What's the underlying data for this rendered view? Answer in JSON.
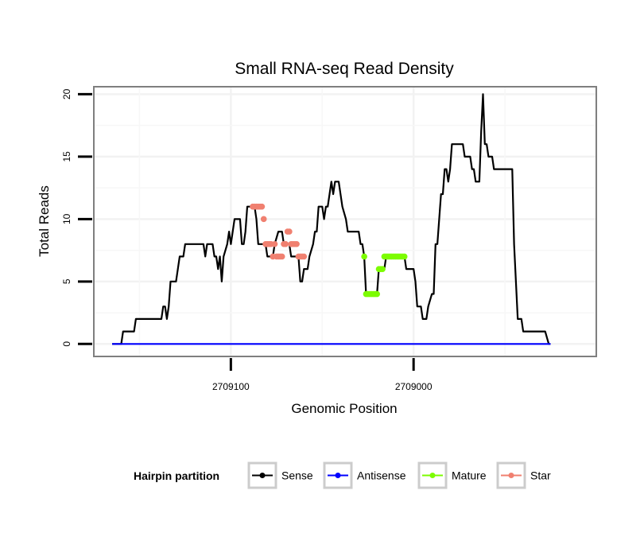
{
  "chart_data": {
    "type": "line",
    "title": "Small RNA-seq Read Density",
    "xlabel": "Genomic Position",
    "ylabel": "Total Reads",
    "x_reversed": true,
    "xlim": [
      2709175,
      2708900
    ],
    "ylim": [
      -1,
      20.6
    ],
    "x_ticks": [
      {
        "value": 2709100,
        "label": "2709100"
      },
      {
        "value": 2709000,
        "label": "2709000"
      }
    ],
    "y_ticks": [
      {
        "value": 0,
        "label": "0"
      },
      {
        "value": 5,
        "label": "5"
      },
      {
        "value": 10,
        "label": "10"
      },
      {
        "value": 15,
        "label": "15"
      },
      {
        "value": 20,
        "label": "20"
      }
    ],
    "grid": true,
    "legend": {
      "title": "Hairpin partition",
      "placement": "bottom",
      "entries": [
        {
          "label": "Sense",
          "color": "#000000"
        },
        {
          "label": "Antisense",
          "color": "#0000ff"
        },
        {
          "label": "Mature",
          "color": "#7cfc00"
        },
        {
          "label": "Star",
          "color": "#f08070"
        }
      ]
    },
    "series": [
      {
        "name": "Sense",
        "color": "#000000",
        "style": "line",
        "points": [
          [
            2709165,
            0
          ],
          [
            2709160,
            0
          ],
          [
            2709159,
            1
          ],
          [
            2709153,
            1
          ],
          [
            2709152,
            2
          ],
          [
            2709138,
            2
          ],
          [
            2709137,
            3
          ],
          [
            2709136,
            3
          ],
          [
            2709135,
            2
          ],
          [
            2709134,
            3
          ],
          [
            2709133,
            5
          ],
          [
            2709130,
            5
          ],
          [
            2709129,
            6
          ],
          [
            2709128,
            7
          ],
          [
            2709126,
            7
          ],
          [
            2709125,
            8
          ],
          [
            2709115,
            8
          ],
          [
            2709114,
            7
          ],
          [
            2709113,
            8
          ],
          [
            2709110,
            8
          ],
          [
            2709109,
            7
          ],
          [
            2709108,
            7
          ],
          [
            2709107,
            6
          ],
          [
            2709106,
            7
          ],
          [
            2709105,
            5
          ],
          [
            2709104,
            7
          ],
          [
            2709102,
            8
          ],
          [
            2709101,
            9
          ],
          [
            2709100,
            8
          ],
          [
            2709098,
            10
          ],
          [
            2709095,
            10
          ],
          [
            2709094,
            8
          ],
          [
            2709093,
            8
          ],
          [
            2709092,
            9
          ],
          [
            2709091,
            11
          ],
          [
            2709087,
            11
          ],
          [
            2709086,
            10
          ],
          [
            2709085,
            8
          ],
          [
            2709081,
            8
          ],
          [
            2709080,
            7
          ],
          [
            2709077,
            7
          ],
          [
            2709076,
            8
          ],
          [
            2709074,
            9
          ],
          [
            2709072,
            9
          ],
          [
            2709071,
            8
          ],
          [
            2709068,
            8
          ],
          [
            2709067,
            7
          ],
          [
            2709063,
            7
          ],
          [
            2709062,
            5
          ],
          [
            2709061,
            5
          ],
          [
            2709060,
            6
          ],
          [
            2709058,
            6
          ],
          [
            2709057,
            7
          ],
          [
            2709055,
            8
          ],
          [
            2709054,
            9
          ],
          [
            2709053,
            9
          ],
          [
            2709052,
            11
          ],
          [
            2709050,
            11
          ],
          [
            2709049,
            10
          ],
          [
            2709048,
            11
          ],
          [
            2709047,
            11
          ],
          [
            2709046,
            12
          ],
          [
            2709045,
            13
          ],
          [
            2709044,
            12
          ],
          [
            2709043,
            13
          ],
          [
            2709041,
            13
          ],
          [
            2709040,
            12
          ],
          [
            2709039,
            11
          ],
          [
            2709037,
            10
          ],
          [
            2709036,
            9
          ],
          [
            2709030,
            9
          ],
          [
            2709029,
            8
          ],
          [
            2709028,
            8
          ],
          [
            2709027,
            7
          ],
          [
            2709026,
            4
          ],
          [
            2709020,
            4
          ],
          [
            2709019,
            6
          ],
          [
            2709016,
            6
          ],
          [
            2709015,
            7
          ],
          [
            2709005,
            7
          ],
          [
            2709004,
            6
          ],
          [
            2709000,
            6
          ],
          [
            2708999,
            5
          ],
          [
            2708998,
            3
          ],
          [
            2708996,
            3
          ],
          [
            2708995,
            2
          ],
          [
            2708993,
            2
          ],
          [
            2708992,
            3
          ],
          [
            2708990,
            4
          ],
          [
            2708989,
            4
          ],
          [
            2708988,
            8
          ],
          [
            2708987,
            8
          ],
          [
            2708986,
            10
          ],
          [
            2708985,
            12
          ],
          [
            2708984,
            12
          ],
          [
            2708983,
            14
          ],
          [
            2708982,
            14
          ],
          [
            2708981,
            13
          ],
          [
            2708980,
            14
          ],
          [
            2708979,
            16
          ],
          [
            2708973,
            16
          ],
          [
            2708972,
            15
          ],
          [
            2708969,
            15
          ],
          [
            2708968,
            14
          ],
          [
            2708967,
            14
          ],
          [
            2708966,
            13
          ],
          [
            2708964,
            13
          ],
          [
            2708963,
            17
          ],
          [
            2708962,
            20
          ],
          [
            2708961,
            16
          ],
          [
            2708960,
            16
          ],
          [
            2708959,
            15
          ],
          [
            2708957,
            15
          ],
          [
            2708956,
            14
          ],
          [
            2708946,
            14
          ],
          [
            2708945,
            8
          ],
          [
            2708944,
            5
          ],
          [
            2708943,
            2
          ],
          [
            2708941,
            2
          ],
          [
            2708940,
            1
          ],
          [
            2708928,
            1
          ],
          [
            2708926,
            0
          ],
          [
            2708925,
            0
          ]
        ]
      },
      {
        "name": "Antisense",
        "color": "#0000ff",
        "style": "line",
        "points": [
          [
            2709165,
            0
          ],
          [
            2708925,
            0
          ]
        ]
      },
      {
        "name": "Mature",
        "color": "#7cfc00",
        "style": "points",
        "points": [
          [
            2709027,
            7
          ],
          [
            2709026,
            4
          ],
          [
            2709025,
            4
          ],
          [
            2709024,
            4
          ],
          [
            2709023,
            4
          ],
          [
            2709022,
            4
          ],
          [
            2709021,
            4
          ],
          [
            2709020,
            4
          ],
          [
            2709019,
            6
          ],
          [
            2709018,
            6
          ],
          [
            2709017,
            6
          ],
          [
            2709016,
            7
          ],
          [
            2709015,
            7
          ],
          [
            2709014,
            7
          ],
          [
            2709013,
            7
          ],
          [
            2709012,
            7
          ],
          [
            2709011,
            7
          ],
          [
            2709010,
            7
          ],
          [
            2709009,
            7
          ],
          [
            2709008,
            7
          ],
          [
            2709007,
            7
          ],
          [
            2709006,
            7
          ],
          [
            2709005,
            7
          ]
        ]
      },
      {
        "name": "Star",
        "color": "#f08070",
        "style": "points",
        "points": [
          [
            2709088,
            11
          ],
          [
            2709087,
            11
          ],
          [
            2709086,
            11
          ],
          [
            2709085,
            11
          ],
          [
            2709084,
            11
          ],
          [
            2709083,
            11
          ],
          [
            2709082,
            10
          ],
          [
            2709081,
            8
          ],
          [
            2709080,
            8
          ],
          [
            2709079,
            8
          ],
          [
            2709078,
            8
          ],
          [
            2709077,
            7
          ],
          [
            2709076,
            8
          ],
          [
            2709075,
            7
          ],
          [
            2709074,
            7
          ],
          [
            2709073,
            7
          ],
          [
            2709072,
            7
          ],
          [
            2709071,
            8
          ],
          [
            2709070,
            8
          ],
          [
            2709069,
            9
          ],
          [
            2709068,
            9
          ],
          [
            2709067,
            8
          ],
          [
            2709066,
            8
          ],
          [
            2709065,
            8
          ],
          [
            2709064,
            8
          ],
          [
            2709063,
            7
          ],
          [
            2709062,
            7
          ],
          [
            2709061,
            7
          ],
          [
            2709060,
            7
          ]
        ]
      }
    ]
  }
}
